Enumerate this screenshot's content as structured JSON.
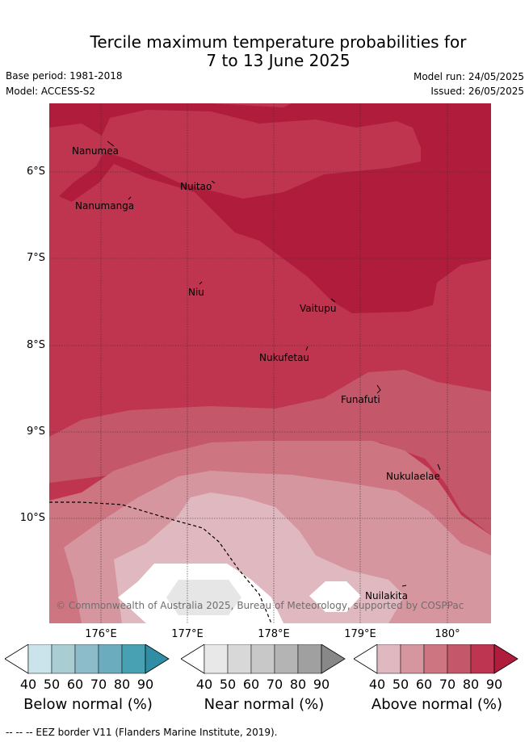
{
  "title_line1": "Tercile maximum temperature probabilities for",
  "title_line2": "7 to 13 June 2025",
  "base_period": "Base period: 1981-2018",
  "model": "Model: ACCESS-S2",
  "model_run": "Model run: 24/05/2025",
  "issued": "Issued: 26/05/2025",
  "copyright": "© Commonwealth of Australia 2025, Bureau of Meteorology, supported by COSPPac",
  "lat_labels": [
    "6°S",
    "7°S",
    "8°S",
    "9°S",
    "10°S"
  ],
  "lon_labels": [
    "176°E",
    "177°E",
    "178°E",
    "179°E",
    "180°"
  ],
  "places": [
    {
      "name": "Nanumea"
    },
    {
      "name": "Nuitao"
    },
    {
      "name": "Nanumanga"
    },
    {
      "name": "Niu"
    },
    {
      "name": "Vaitupu"
    },
    {
      "name": "Nukufetau"
    },
    {
      "name": "Funafuti"
    },
    {
      "name": "Nukulaelae"
    },
    {
      "name": "Nuilakita"
    }
  ],
  "colorbars": [
    {
      "title": "Below normal (%)",
      "ticks": [
        "40",
        "50",
        "60",
        "70",
        "80",
        "90"
      ],
      "colors": [
        "#ffffff",
        "#cbe3ea",
        "#a9cdd3",
        "#8cbcc9",
        "#6badbf",
        "#48a0b3",
        "#2f8ea3"
      ]
    },
    {
      "title": "Near normal (%)",
      "ticks": [
        "40",
        "50",
        "60",
        "70",
        "80",
        "90"
      ],
      "colors": [
        "#ffffff",
        "#e8e8e8",
        "#d8d8d8",
        "#c8c8c8",
        "#b4b4b4",
        "#a0a0a0",
        "#888888"
      ]
    },
    {
      "title": "Above normal (%)",
      "ticks": [
        "40",
        "50",
        "60",
        "70",
        "80",
        "90"
      ],
      "colors": [
        "#ffffff",
        "#e0b9c0",
        "#d696a0",
        "#cd7581",
        "#c4586a",
        "#bd3550",
        "#b01c3c"
      ]
    }
  ],
  "footer": "-- -- -- EEZ border V11 (Flanders Marine Institute, 2019)."
}
